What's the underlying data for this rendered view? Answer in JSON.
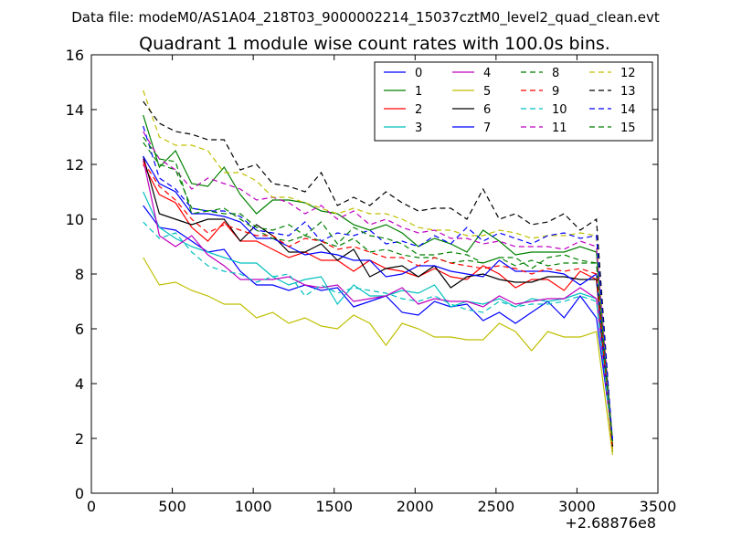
{
  "chart_data": {
    "type": "line",
    "suptitle": "Data file: modeM0/AS1A04_218T03_9000002214_15037cztM0_level2_quad_clean.evt",
    "title": "Quadrant 1 module wise count rates with 100.0s bins.",
    "xlabel": "",
    "ylabel": "",
    "x_offset_label": "+2.68876e8",
    "xlim": [
      0,
      3500
    ],
    "ylim": [
      0,
      16
    ],
    "xticks": [
      0,
      500,
      1000,
      1500,
      2000,
      2500,
      3000,
      3500
    ],
    "yticks": [
      0,
      2,
      4,
      6,
      8,
      10,
      12,
      14,
      16
    ],
    "grid": false,
    "legend_position": "top-right",
    "x": [
      320,
      420,
      520,
      620,
      720,
      820,
      920,
      1020,
      1120,
      1220,
      1320,
      1420,
      1520,
      1620,
      1720,
      1820,
      1920,
      2020,
      2120,
      2220,
      2320,
      2420,
      2520,
      2620,
      2720,
      2820,
      2920,
      3020,
      3120,
      3220
    ],
    "series": [
      {
        "name": "0",
        "color": "#0000ff",
        "dash": "solid",
        "values": [
          10.5,
          9.7,
          9.6,
          9.2,
          8.8,
          8.9,
          8.1,
          7.6,
          7.6,
          7.4,
          7.6,
          7.4,
          7.5,
          6.8,
          7.0,
          7.2,
          6.6,
          6.5,
          7.0,
          6.8,
          6.9,
          6.3,
          6.6,
          6.2,
          6.6,
          7.0,
          6.4,
          7.2,
          6.4,
          2.0
        ]
      },
      {
        "name": "1",
        "color": "#008000",
        "dash": "solid",
        "values": [
          13.8,
          11.9,
          12.5,
          11.3,
          11.2,
          11.9,
          10.9,
          10.2,
          10.7,
          10.7,
          10.6,
          10.3,
          10.2,
          9.8,
          9.6,
          9.8,
          9.5,
          9.0,
          9.3,
          9.1,
          8.8,
          9.6,
          9.2,
          8.7,
          8.8,
          8.8,
          8.8,
          9.0,
          8.8,
          1.5
        ]
      },
      {
        "name": "2",
        "color": "#ff0000",
        "dash": "solid",
        "values": [
          12.0,
          10.9,
          10.6,
          9.7,
          9.2,
          9.9,
          9.2,
          9.2,
          8.9,
          8.6,
          8.8,
          8.5,
          8.5,
          8.1,
          8.5,
          8.2,
          8.1,
          7.9,
          8.2,
          7.9,
          7.8,
          8.3,
          8.0,
          7.5,
          7.8,
          7.8,
          7.4,
          8.1,
          7.8,
          1.6
        ]
      },
      {
        "name": "3",
        "color": "#00bfbf",
        "dash": "solid",
        "values": [
          11.0,
          9.7,
          9.3,
          9.0,
          8.8,
          8.6,
          8.4,
          8.4,
          7.9,
          7.6,
          7.8,
          7.9,
          6.9,
          7.6,
          7.2,
          7.2,
          7.4,
          7.3,
          7.6,
          6.8,
          7.0,
          6.9,
          7.1,
          6.8,
          7.1,
          7.0,
          7.1,
          7.3,
          7.1,
          1.9
        ]
      },
      {
        "name": "4",
        "color": "#bf00bf",
        "dash": "solid",
        "values": [
          12.2,
          9.4,
          9.0,
          9.4,
          8.7,
          8.3,
          7.8,
          7.8,
          7.8,
          7.9,
          7.6,
          7.5,
          7.6,
          7.0,
          7.1,
          7.2,
          7.5,
          6.9,
          7.1,
          7.0,
          7.0,
          6.8,
          7.2,
          6.9,
          7.0,
          7.1,
          7.1,
          7.5,
          7.1,
          1.8
        ]
      },
      {
        "name": "5",
        "color": "#bfbf00",
        "dash": "solid",
        "values": [
          8.6,
          7.6,
          7.7,
          7.4,
          7.2,
          6.9,
          6.9,
          6.4,
          6.6,
          6.2,
          6.4,
          6.1,
          6.0,
          6.5,
          6.2,
          5.4,
          6.2,
          6.0,
          5.7,
          5.7,
          5.6,
          5.6,
          6.2,
          5.9,
          5.2,
          5.9,
          5.7,
          5.7,
          5.9,
          1.4
        ]
      },
      {
        "name": "6",
        "color": "#000000",
        "dash": "solid",
        "values": [
          12.3,
          10.2,
          10.0,
          9.8,
          10.0,
          10.0,
          9.2,
          9.8,
          9.4,
          8.8,
          8.8,
          9.1,
          8.5,
          8.9,
          7.9,
          8.2,
          8.3,
          7.9,
          8.3,
          7.5,
          7.9,
          8.0,
          7.8,
          7.7,
          7.7,
          7.9,
          7.9,
          7.8,
          7.8,
          1.7
        ]
      },
      {
        "name": "7",
        "color": "#0000ff",
        "dash": "solid",
        "values": [
          12.3,
          11.3,
          11.0,
          10.2,
          10.2,
          10.1,
          9.9,
          9.3,
          9.3,
          9.0,
          8.7,
          8.8,
          8.7,
          8.5,
          8.5,
          7.9,
          8.0,
          8.3,
          8.3,
          8.1,
          8.0,
          7.9,
          8.5,
          8.1,
          8.1,
          8.1,
          8.0,
          7.6,
          8.0,
          1.7
        ]
      },
      {
        "name": "8",
        "color": "#008000",
        "dash": "dashed",
        "values": [
          12.8,
          12.0,
          11.8,
          10.4,
          10.3,
          10.4,
          10.0,
          9.6,
          9.3,
          9.2,
          9.4,
          9.2,
          9.0,
          9.3,
          8.8,
          8.9,
          8.7,
          8.6,
          8.6,
          8.4,
          8.5,
          8.4,
          8.6,
          8.3,
          8.5,
          8.3,
          8.4,
          8.4,
          8.4,
          1.8
        ]
      },
      {
        "name": "9",
        "color": "#ff0000",
        "dash": "dashed",
        "values": [
          12.1,
          11.2,
          10.7,
          10.0,
          9.5,
          9.8,
          9.6,
          9.4,
          9.4,
          9.0,
          9.3,
          9.2,
          8.9,
          9.0,
          8.8,
          8.6,
          8.6,
          8.3,
          8.6,
          8.4,
          8.3,
          8.2,
          8.3,
          8.2,
          8.0,
          8.2,
          8.1,
          8.2,
          8.0,
          1.6
        ]
      },
      {
        "name": "10",
        "color": "#00bfbf",
        "dash": "dashed",
        "values": [
          9.9,
          9.3,
          9.5,
          8.8,
          8.3,
          8.1,
          8.0,
          7.7,
          7.9,
          8.0,
          7.2,
          7.6,
          7.3,
          7.5,
          7.4,
          7.3,
          7.1,
          7.0,
          7.2,
          6.9,
          6.7,
          6.6,
          7.0,
          6.8,
          6.9,
          6.9,
          7.0,
          7.2,
          7.0,
          1.9
        ]
      },
      {
        "name": "11",
        "color": "#bf00bf",
        "dash": "dashed",
        "values": [
          13.2,
          12.2,
          11.8,
          11.1,
          11.5,
          11.3,
          11.1,
          10.7,
          10.8,
          10.6,
          10.2,
          10.5,
          10.0,
          10.3,
          9.8,
          10.0,
          9.7,
          9.5,
          9.6,
          9.3,
          9.3,
          9.1,
          9.2,
          9.0,
          9.0,
          9.0,
          8.9,
          9.2,
          9.0,
          1.9
        ]
      },
      {
        "name": "12",
        "color": "#bfbf00",
        "dash": "dashed",
        "values": [
          14.7,
          13.0,
          12.7,
          12.7,
          12.5,
          11.7,
          11.7,
          11.4,
          10.8,
          10.8,
          10.6,
          10.4,
          10.2,
          10.4,
          10.2,
          10.2,
          10.0,
          9.7,
          9.6,
          9.6,
          9.4,
          9.4,
          9.6,
          9.5,
          9.3,
          9.4,
          9.4,
          9.5,
          9.4,
          1.5
        ]
      },
      {
        "name": "13",
        "color": "#000000",
        "dash": "dashed",
        "values": [
          14.3,
          13.5,
          13.2,
          13.1,
          12.9,
          12.9,
          11.8,
          12.0,
          11.3,
          11.2,
          11.0,
          11.7,
          10.5,
          10.8,
          10.5,
          11.0,
          10.6,
          10.3,
          10.4,
          10.4,
          10.0,
          11.1,
          10.0,
          10.2,
          9.8,
          9.9,
          10.2,
          9.6,
          10.0,
          1.7
        ]
      },
      {
        "name": "14",
        "color": "#0000ff",
        "dash": "dashed",
        "values": [
          13.4,
          11.5,
          11.1,
          10.4,
          10.3,
          10.3,
          10.1,
          9.6,
          9.5,
          9.4,
          9.9,
          9.2,
          9.5,
          9.4,
          9.6,
          9.1,
          9.2,
          9.0,
          9.4,
          9.1,
          9.7,
          9.2,
          9.5,
          9.3,
          9.1,
          9.4,
          9.5,
          9.3,
          9.4,
          1.9
        ]
      },
      {
        "name": "15",
        "color": "#008000",
        "dash": "dashed",
        "values": [
          13.0,
          12.2,
          12.1,
          10.2,
          10.3,
          10.2,
          10.2,
          9.7,
          9.6,
          9.8,
          9.4,
          9.9,
          9.1,
          9.7,
          9.4,
          9.3,
          9.1,
          8.7,
          8.7,
          8.8,
          8.7,
          8.4,
          8.6,
          8.6,
          8.2,
          8.6,
          8.7,
          8.5,
          8.4,
          1.9
        ]
      }
    ]
  }
}
